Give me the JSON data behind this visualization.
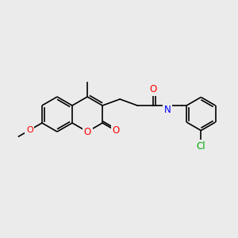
{
  "background_color": "#ebebeb",
  "bond_color": "#000000",
  "atom_colors": {
    "O": "#ff0000",
    "N": "#0000ff",
    "Cl": "#00aa00",
    "C": "#000000"
  },
  "font_size": 7,
  "line_width": 1.2
}
